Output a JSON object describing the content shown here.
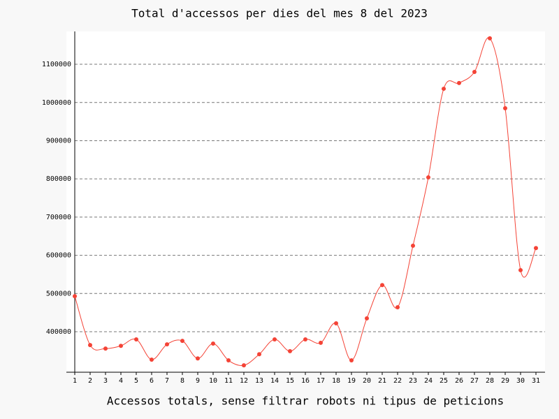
{
  "chart_data": {
    "type": "line",
    "title": "Total d'accessos per dies del mes 8 del 2023",
    "x_label": "Accessos totals, sense filtrar robots ni tipus de peticions",
    "categories": [
      "1",
      "2",
      "3",
      "4",
      "5",
      "6",
      "7",
      "8",
      "9",
      "10",
      "11",
      "12",
      "13",
      "14",
      "15",
      "16",
      "17",
      "18",
      "19",
      "20",
      "21",
      "22",
      "23",
      "24",
      "25",
      "26",
      "27",
      "28",
      "29",
      "30",
      "31"
    ],
    "series": [
      {
        "name": "Accessos",
        "color": "#f44336",
        "values": [
          493000,
          365000,
          356000,
          363000,
          380000,
          327000,
          367000,
          376000,
          330000,
          369000,
          325000,
          312000,
          341000,
          380000,
          349000,
          380000,
          371000,
          422000,
          325000,
          435000,
          522000,
          464000,
          625000,
          804000,
          1036000,
          1051000,
          1080000,
          1168000,
          985000,
          561000,
          619000
        ]
      }
    ],
    "ylim": [
      294000,
      1186000
    ],
    "yticks": [
      400000,
      500000,
      600000,
      700000,
      800000,
      900000,
      1000000,
      1100000
    ],
    "grid": true,
    "smooth": true
  }
}
